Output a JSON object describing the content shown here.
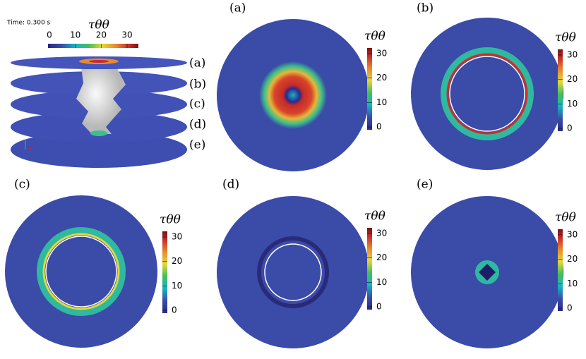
{
  "overview": {
    "time_label": "Time: 0.300 s",
    "colorbar": {
      "title": "τθθ",
      "ticks": [
        0,
        10,
        20,
        30
      ]
    },
    "slice_labels": [
      "(a)",
      "(b)",
      "(c)",
      "(d)",
      "(e)"
    ]
  },
  "panels": [
    {
      "label": "(a)",
      "colorbar": {
        "title": "τθθ",
        "ticks": [
          0,
          10,
          20,
          30
        ]
      }
    },
    {
      "label": "(b)",
      "colorbar": {
        "title": "τθθ",
        "ticks": [
          0,
          10,
          20,
          30
        ]
      }
    },
    {
      "label": "(c)",
      "colorbar": {
        "title": "τθθ",
        "ticks": [
          0,
          10,
          20,
          30
        ]
      }
    },
    {
      "label": "(d)",
      "colorbar": {
        "title": "τθθ",
        "ticks": [
          0,
          10,
          20,
          30
        ]
      }
    },
    {
      "label": "(e)",
      "colorbar": {
        "title": "τθθ",
        "ticks": [
          0,
          10,
          20,
          30
        ]
      }
    }
  ]
}
